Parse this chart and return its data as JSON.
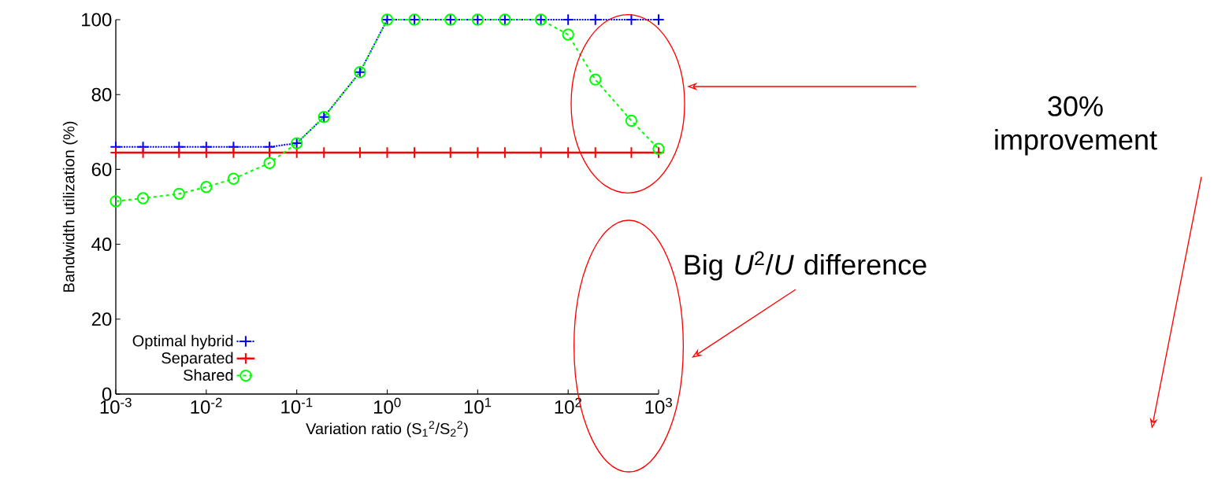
{
  "chart_data": {
    "type": "line",
    "xlabel": "Variation ratio (S$_{1}$$^{2}$/S$_{2}$$^{2}$)",
    "ylabel": "Bandwidth utilization (%)",
    "x": [
      0.001,
      0.002,
      0.005,
      0.01,
      0.02,
      0.05,
      0.1,
      0.2,
      0.5,
      1,
      2,
      5,
      10,
      20,
      50,
      100,
      200,
      500,
      1000
    ],
    "series": [
      {
        "name": "Optimal hybrid",
        "color": "#0000ff",
        "marker": "cross",
        "line_style": "dotted",
        "values": [
          66,
          66,
          66,
          66,
          66,
          66,
          67,
          74,
          86,
          100,
          100,
          100,
          100,
          100,
          100,
          100,
          100,
          100,
          100
        ]
      },
      {
        "name": "Separated",
        "color": "#ff0000",
        "marker": "cross",
        "line_style": "solid",
        "values": [
          64.5,
          64.5,
          64.5,
          64.5,
          64.5,
          64.5,
          64.5,
          64.5,
          64.5,
          64.5,
          64.5,
          64.5,
          64.5,
          64.5,
          64.5,
          64.5,
          64.5,
          64.5,
          64.5
        ]
      },
      {
        "name": "Shared",
        "color": "#00ff00",
        "marker": "circle",
        "line_style": "dashed",
        "values": [
          51.5,
          52.3,
          53.5,
          55.3,
          57.5,
          61.7,
          67,
          74,
          86,
          100,
          100,
          100,
          100,
          100,
          100,
          96,
          84,
          73,
          65.5
        ]
      }
    ],
    "log": "x",
    "xlim": [
      0.001,
      1000
    ],
    "ylim": [
      0,
      100
    ],
    "xticks": [
      {
        "value": 0.001,
        "label": "10$^{-3}$"
      },
      {
        "value": 0.01,
        "label": "10$^{-2}$"
      },
      {
        "value": 0.1,
        "label": "10$^{-1}$"
      },
      {
        "value": 1,
        "label": "10$^{0}$"
      },
      {
        "value": 10,
        "label": "10$^{1}$"
      },
      {
        "value": 100,
        "label": "10$^{2}$"
      },
      {
        "value": 1000,
        "label": "10$^{3}$"
      }
    ],
    "yticks": [
      0,
      20,
      40,
      60,
      80,
      100
    ],
    "grid": false,
    "legend": "bottom left",
    "annotations": [
      "30% improvement",
      "Big *U*$^{2}$/*U* difference"
    ]
  }
}
